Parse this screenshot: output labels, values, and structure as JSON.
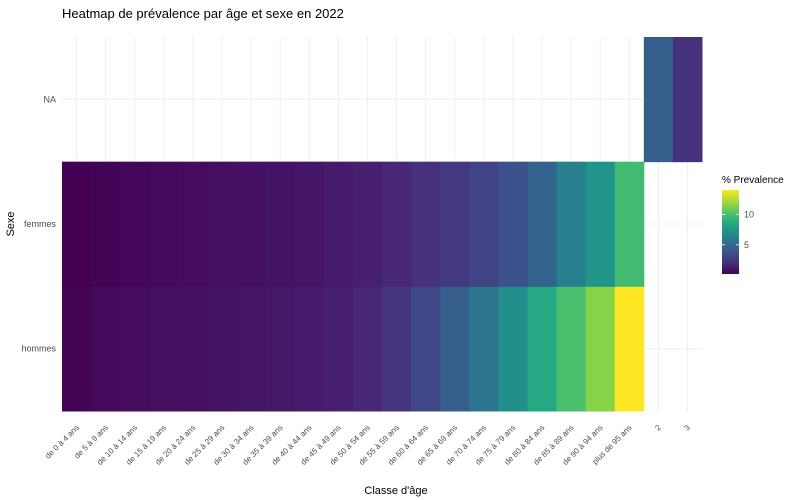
{
  "chart_data": {
    "type": "heatmap",
    "title": "Heatmap de prévalence par âge et sexe en 2022",
    "xlabel": "Classe d'âge",
    "ylabel": "Sexe",
    "x_categories": [
      "de 0 à 4 ans",
      "de 5 à 9 ans",
      "de 10 à 14 ans",
      "de 15 à 19 ans",
      "de 20 à 24 ans",
      "de 25 à 29 ans",
      "de 30 à 34 ans",
      "de 35 à 39 ans",
      "de 40 à 44 ans",
      "de 45 à 49 ans",
      "de 50 à 54 ans",
      "de 55 à 59 ans",
      "de 60 à 64 ans",
      "de 65 à 69 ans",
      "de 70 à 74 ans",
      "de 75 à 79 ans",
      "de 80 à 84 ans",
      "de 85 à 89 ans",
      "de 90 à 94 ans",
      "plus de 95 ans",
      "2",
      "3"
    ],
    "y_categories": [
      "hommes",
      "femmes",
      "NA"
    ],
    "values": {
      "hommes": [
        0.3,
        0.5,
        0.6,
        0.7,
        0.8,
        0.9,
        1.0,
        1.1,
        1.2,
        1.4,
        1.7,
        2.3,
        3.2,
        4.3,
        5.6,
        7.0,
        8.5,
        10.0,
        11.5,
        14.0,
        null,
        null
      ],
      "femmes": [
        0.2,
        0.3,
        0.4,
        0.5,
        0.6,
        0.7,
        0.8,
        0.9,
        1.0,
        1.2,
        1.4,
        1.7,
        2.1,
        2.5,
        3.0,
        3.6,
        4.6,
        6.2,
        7.4,
        9.7,
        null,
        null
      ],
      "NA": [
        null,
        null,
        null,
        null,
        null,
        null,
        null,
        null,
        null,
        null,
        null,
        null,
        null,
        null,
        null,
        null,
        null,
        null,
        null,
        null,
        4.3,
        2.1
      ]
    },
    "legend": {
      "title": "% Prevalence",
      "ticks": [
        5,
        10
      ],
      "min": 0.2,
      "max": 14.0,
      "position": "right",
      "colors": [
        "#440154",
        "#472D7B",
        "#3B528B",
        "#2C728E",
        "#21908C",
        "#27AD81",
        "#5DC863",
        "#AADC32",
        "#FDE725"
      ]
    },
    "grid": true
  }
}
